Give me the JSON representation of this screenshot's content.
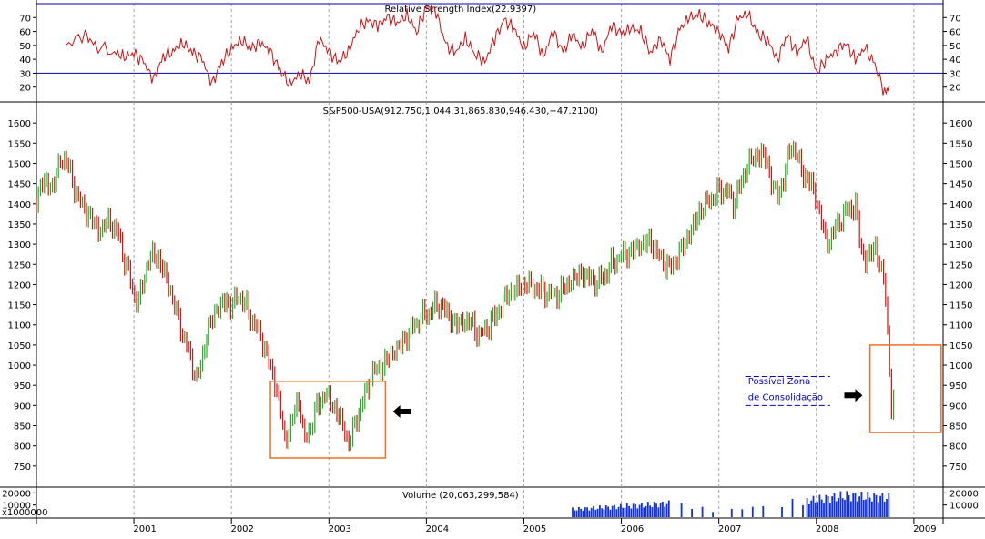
{
  "colors": {
    "up": "#22b022",
    "down": "#e01010",
    "rsi_line": "#d01010",
    "ref_line": "#0000b0",
    "volume": "#1030e0",
    "highlight_box": "#f07020",
    "grid": "#a0a0a0",
    "annotation_text": "#0000c8"
  },
  "chart_data": [
    {
      "type": "line",
      "title": "Relative Strength Index(22.9397)",
      "ylim": [
        10,
        80
      ],
      "yticks": [
        20,
        30,
        40,
        50,
        60,
        70
      ],
      "reference_lines": [
        30,
        80
      ],
      "series": [
        {
          "values": [
            [
              2000.3,
              50
            ],
            [
              2000.5,
              58
            ],
            [
              2000.6,
              50
            ],
            [
              2000.8,
              45
            ],
            [
              2000.9,
              42
            ],
            [
              2001.0,
              44
            ],
            [
              2001.1,
              38
            ],
            [
              2001.2,
              25
            ],
            [
              2001.3,
              42
            ],
            [
              2001.4,
              46
            ],
            [
              2001.5,
              52
            ],
            [
              2001.6,
              45
            ],
            [
              2001.7,
              40
            ],
            [
              2001.8,
              22
            ],
            [
              2001.9,
              38
            ],
            [
              2002.0,
              48
            ],
            [
              2002.1,
              54
            ],
            [
              2002.2,
              48
            ],
            [
              2002.3,
              52
            ],
            [
              2002.4,
              45
            ],
            [
              2002.5,
              32
            ],
            [
              2002.6,
              22
            ],
            [
              2002.7,
              30
            ],
            [
              2002.8,
              24
            ],
            [
              2002.9,
              55
            ],
            [
              2003.0,
              45
            ],
            [
              2003.1,
              38
            ],
            [
              2003.2,
              46
            ],
            [
              2003.3,
              62
            ],
            [
              2003.4,
              68
            ],
            [
              2003.5,
              64
            ],
            [
              2003.6,
              70
            ],
            [
              2003.7,
              66
            ],
            [
              2003.8,
              72
            ],
            [
              2003.9,
              60
            ],
            [
              2004.0,
              78
            ],
            [
              2004.1,
              74
            ],
            [
              2004.2,
              50
            ],
            [
              2004.3,
              45
            ],
            [
              2004.4,
              55
            ],
            [
              2004.5,
              44
            ],
            [
              2004.6,
              38
            ],
            [
              2004.7,
              55
            ],
            [
              2004.8,
              68
            ],
            [
              2004.9,
              62
            ],
            [
              2005.0,
              48
            ],
            [
              2005.1,
              60
            ],
            [
              2005.2,
              42
            ],
            [
              2005.3,
              60
            ],
            [
              2005.4,
              45
            ],
            [
              2005.5,
              58
            ],
            [
              2005.6,
              48
            ],
            [
              2005.7,
              62
            ],
            [
              2005.8,
              45
            ],
            [
              2005.9,
              65
            ],
            [
              2006.0,
              58
            ],
            [
              2006.1,
              62
            ],
            [
              2006.2,
              60
            ],
            [
              2006.3,
              45
            ],
            [
              2006.4,
              55
            ],
            [
              2006.5,
              40
            ],
            [
              2006.6,
              62
            ],
            [
              2006.7,
              70
            ],
            [
              2006.8,
              72
            ],
            [
              2006.9,
              66
            ],
            [
              2007.0,
              60
            ],
            [
              2007.1,
              48
            ],
            [
              2007.2,
              70
            ],
            [
              2007.3,
              72
            ],
            [
              2007.4,
              58
            ],
            [
              2007.5,
              54
            ],
            [
              2007.6,
              40
            ],
            [
              2007.7,
              58
            ],
            [
              2007.8,
              44
            ],
            [
              2007.9,
              55
            ],
            [
              2008.0,
              30
            ],
            [
              2008.1,
              40
            ],
            [
              2008.2,
              46
            ],
            [
              2008.3,
              52
            ],
            [
              2008.4,
              40
            ],
            [
              2008.5,
              48
            ],
            [
              2008.6,
              36
            ],
            [
              2008.7,
              16
            ],
            [
              2008.75,
              20
            ]
          ]
        }
      ]
    },
    {
      "type": "candlestick",
      "title": "S&P500-USA(912.750,1,044.31,865.830,946.430,+47.2100)",
      "ylim": [
        700,
        1650
      ],
      "yticks": [
        750,
        800,
        850,
        900,
        950,
        1000,
        1050,
        1100,
        1150,
        1200,
        1250,
        1300,
        1350,
        1400,
        1450,
        1500,
        1550,
        1600
      ],
      "x_tick_labels": [
        "2001",
        "2002",
        "2003",
        "2004",
        "2005",
        "2006",
        "2007",
        "2008",
        "2009"
      ],
      "close_path": [
        [
          2000.0,
          1400
        ],
        [
          2000.05,
          1460
        ],
        [
          2000.15,
          1440
        ],
        [
          2000.25,
          1500
        ],
        [
          2000.3,
          1520
        ],
        [
          2000.35,
          1470
        ],
        [
          2000.45,
          1400
        ],
        [
          2000.55,
          1370
        ],
        [
          2000.65,
          1330
        ],
        [
          2000.75,
          1360
        ],
        [
          2000.85,
          1320
        ],
        [
          2000.9,
          1260
        ],
        [
          2001.0,
          1180
        ],
        [
          2001.05,
          1150
        ],
        [
          2001.1,
          1220
        ],
        [
          2001.2,
          1280
        ],
        [
          2001.3,
          1240
        ],
        [
          2001.4,
          1160
        ],
        [
          2001.5,
          1080
        ],
        [
          2001.6,
          1000
        ],
        [
          2001.65,
          960
        ],
        [
          2001.75,
          1080
        ],
        [
          2001.85,
          1140
        ],
        [
          2001.95,
          1160
        ],
        [
          2002.0,
          1150
        ],
        [
          2002.1,
          1170
        ],
        [
          2002.2,
          1120
        ],
        [
          2002.3,
          1070
        ],
        [
          2002.4,
          1000
        ],
        [
          2002.5,
          900
        ],
        [
          2002.55,
          800
        ],
        [
          2002.6,
          850
        ],
        [
          2002.7,
          920
        ],
        [
          2002.75,
          800
        ],
        [
          2002.85,
          880
        ],
        [
          2002.95,
          930
        ],
        [
          2003.05,
          900
        ],
        [
          2003.15,
          850
        ],
        [
          2003.2,
          800
        ],
        [
          2003.3,
          880
        ],
        [
          2003.45,
          980
        ],
        [
          2003.55,
          1000
        ],
        [
          2003.7,
          1040
        ],
        [
          2003.85,
          1090
        ],
        [
          2004.0,
          1130
        ],
        [
          2004.15,
          1150
        ],
        [
          2004.3,
          1100
        ],
        [
          2004.45,
          1110
        ],
        [
          2004.55,
          1070
        ],
        [
          2004.7,
          1120
        ],
        [
          2004.85,
          1180
        ],
        [
          2005.0,
          1200
        ],
        [
          2005.15,
          1190
        ],
        [
          2005.3,
          1170
        ],
        [
          2005.45,
          1200
        ],
        [
          2005.6,
          1230
        ],
        [
          2005.75,
          1200
        ],
        [
          2005.9,
          1250
        ],
        [
          2006.0,
          1270
        ],
        [
          2006.15,
          1290
        ],
        [
          2006.3,
          1310
        ],
        [
          2006.4,
          1260
        ],
        [
          2006.5,
          1240
        ],
        [
          2006.65,
          1300
        ],
        [
          2006.8,
          1380
        ],
        [
          2006.95,
          1420
        ],
        [
          2007.05,
          1440
        ],
        [
          2007.15,
          1400
        ],
        [
          2007.3,
          1500
        ],
        [
          2007.45,
          1530
        ],
        [
          2007.55,
          1450
        ],
        [
          2007.6,
          1410
        ],
        [
          2007.75,
          1550
        ],
        [
          2007.85,
          1480
        ],
        [
          2007.95,
          1450
        ],
        [
          2008.05,
          1360
        ],
        [
          2008.1,
          1300
        ],
        [
          2008.2,
          1340
        ],
        [
          2008.3,
          1380
        ],
        [
          2008.4,
          1400
        ],
        [
          2008.45,
          1300
        ],
        [
          2008.5,
          1250
        ],
        [
          2008.6,
          1300
        ],
        [
          2008.7,
          1200
        ],
        [
          2008.75,
          1000
        ],
        [
          2008.78,
          850
        ],
        [
          2008.8,
          940
        ]
      ],
      "highlight_boxes": [
        {
          "x": [
            2002.4,
            2003.58
          ],
          "y": [
            770,
            960
          ]
        },
        {
          "x": [
            2008.55,
            2009.28
          ],
          "y": [
            833,
            1050
          ]
        }
      ],
      "arrows": [
        {
          "x": 2003.75,
          "y": 885,
          "direction": "left"
        },
        {
          "x": 2008.38,
          "y": 925,
          "direction": "right"
        }
      ],
      "annotations": [
        "Possível Zona",
        "de Consolidação"
      ]
    },
    {
      "type": "bar",
      "title": "Volume (20,063,299,584)",
      "ylim": [
        0,
        24000
      ],
      "yticks": [
        10000,
        20000
      ],
      "unit_label": "x1000000",
      "series": [
        {
          "values": [
            [
              2005.5,
              8000
            ],
            [
              2006.5,
              14000
            ],
            [
              2007.0,
              6000
            ],
            [
              2007.5,
              12000
            ],
            [
              2008.0,
              18000
            ],
            [
              2008.3,
              22000
            ],
            [
              2008.75,
              20000
            ]
          ]
        }
      ]
    }
  ]
}
